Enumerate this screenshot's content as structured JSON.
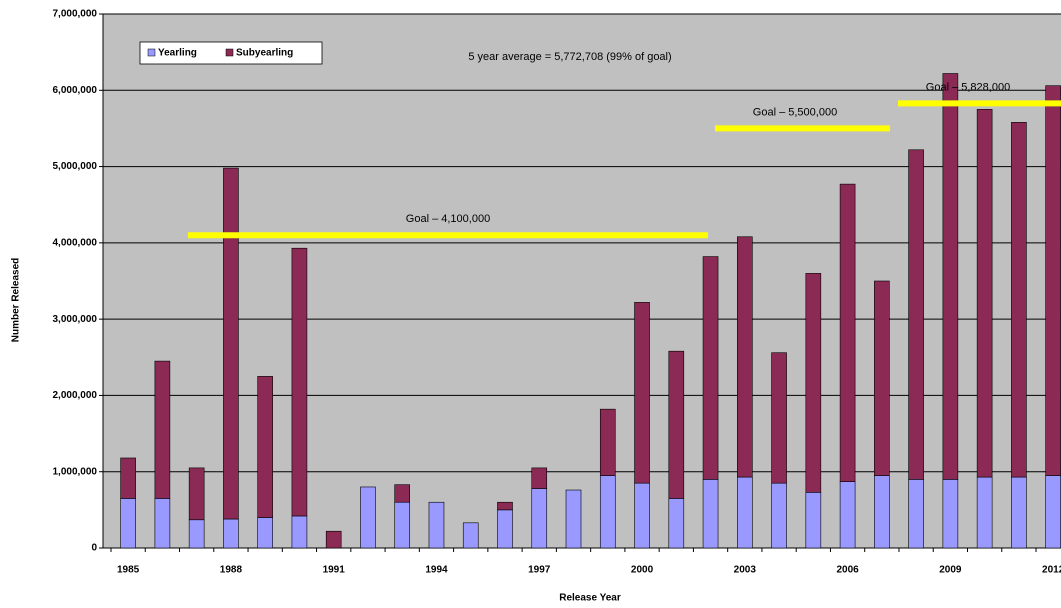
{
  "chart_data": {
    "type": "stacked_bar",
    "y_label": "Number Released",
    "x_label": "Release Year",
    "annotation": "5 year average = 5,772,708 (99% of goal)",
    "categories": [
      "1985",
      null,
      null,
      "1988",
      null,
      null,
      "1991",
      null,
      null,
      "1994",
      null,
      null,
      "1997",
      null,
      null,
      "2000",
      null,
      null,
      "2003",
      null,
      null,
      "2006",
      null,
      null,
      "2009",
      null,
      null,
      "2012"
    ],
    "series": [
      {
        "name": "Yearling",
        "color": "#9999ff",
        "values": [
          650000,
          650000,
          370000,
          380000,
          400000,
          420000,
          0,
          800000,
          600000,
          600000,
          330000,
          500000,
          780000,
          760000,
          950000,
          850000,
          650000,
          900000,
          930000,
          850000,
          730000,
          870000,
          950000,
          900000,
          900000,
          930000,
          930000,
          950000
        ]
      },
      {
        "name": "Subyearling",
        "color": "#8b2a55",
        "values": [
          530000,
          1800000,
          680000,
          4600000,
          1850000,
          3510000,
          220000,
          0,
          230000,
          0,
          0,
          100000,
          270000,
          0,
          870000,
          2370000,
          1930000,
          2920000,
          3150000,
          1710000,
          2870000,
          3900000,
          2550000,
          4320000,
          5320000,
          4820000,
          4650000,
          5110000
        ]
      }
    ],
    "goals": [
      {
        "value": 4100000,
        "label": "Goal – 4,100,000"
      },
      {
        "value": 5500000,
        "label": "Goal – 5,500,000"
      },
      {
        "value": 5828000,
        "label": "Goal – 5,828,000"
      }
    ],
    "ylim": [
      0,
      7000000
    ],
    "yticks": [
      0,
      {
        "value": 1000000,
        "label": "1,000,000"
      },
      {
        "value": 2000000,
        "label": "2,000,000"
      },
      {
        "value": 3000000,
        "label": "3,000,000"
      },
      {
        "value": 4000000,
        "label": "4,000,000"
      },
      {
        "value": 5000000,
        "label": "5,000,000"
      },
      {
        "value": 6000000,
        "label": "6,000,000"
      },
      {
        "value": 7000000,
        "label": "7,000,000"
      }
    ],
    "grid": true
  }
}
